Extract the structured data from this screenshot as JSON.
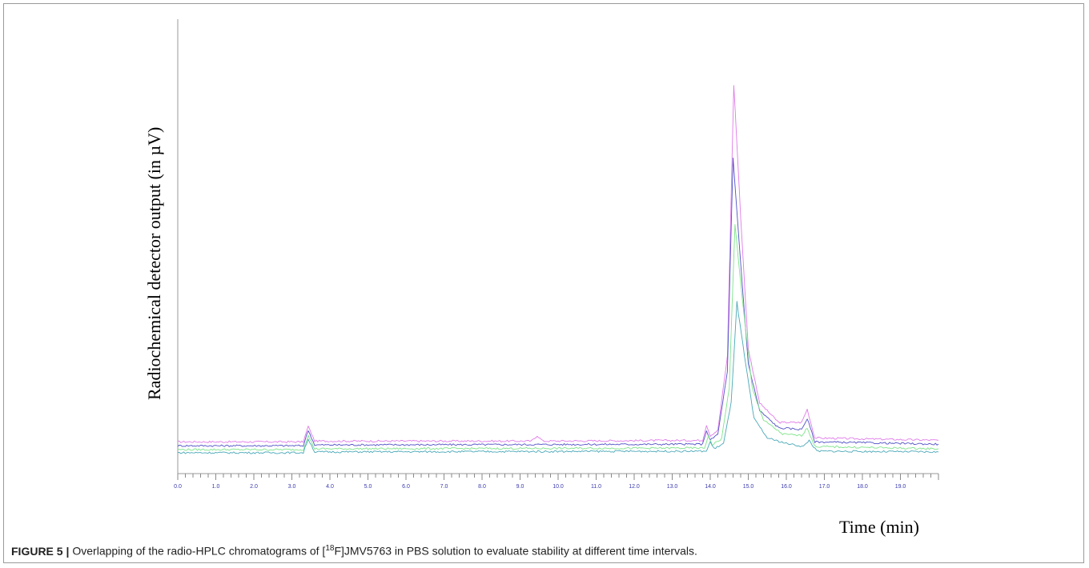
{
  "chart_data": {
    "type": "line",
    "xlabel": "Time (min)",
    "ylabel": "Radiochemical detector output (in µV)",
    "xlim": [
      0.0,
      20.0
    ],
    "x_ticks": [
      "0.0",
      "1.0",
      "2.0",
      "3.0",
      "4.0",
      "5.0",
      "6.0",
      "7.0",
      "8.0",
      "9.0",
      "10.0",
      "11.0",
      "12.0",
      "13.0",
      "14.0",
      "15.0",
      "16.0",
      "17.0",
      "18.0",
      "19.0"
    ],
    "grid": false,
    "series": [
      {
        "color": "#e07be8",
        "x": [
          0.0,
          3.3,
          3.43,
          3.6,
          9.3,
          9.45,
          9.6,
          13.8,
          13.9,
          14.0,
          14.2,
          14.45,
          14.62,
          14.8,
          15.0,
          15.3,
          15.8,
          16.4,
          16.55,
          16.75,
          20.0
        ],
        "y": [
          10,
          10,
          30,
          11,
          11,
          18,
          11,
          12,
          32,
          18,
          25,
          120,
          470,
          300,
          130,
          60,
          35,
          35,
          52,
          15,
          12
        ]
      },
      {
        "color": "#5252c8",
        "x": [
          0.0,
          3.3,
          3.43,
          3.6,
          13.8,
          13.9,
          14.0,
          14.2,
          14.45,
          14.6,
          14.8,
          15.0,
          15.3,
          15.8,
          16.4,
          16.55,
          16.75,
          20.0
        ],
        "y": [
          5,
          5,
          25,
          6,
          7,
          25,
          12,
          20,
          100,
          375,
          240,
          110,
          50,
          28,
          26,
          40,
          10,
          7
        ]
      },
      {
        "color": "#7ee48a",
        "x": [
          0.0,
          3.3,
          3.43,
          3.6,
          13.85,
          13.95,
          14.05,
          14.3,
          14.5,
          14.65,
          14.85,
          15.1,
          15.4,
          15.9,
          16.4,
          16.55,
          16.75,
          20.0
        ],
        "y": [
          0,
          0,
          18,
          1,
          2,
          18,
          6,
          14,
          80,
          290,
          190,
          80,
          38,
          20,
          18,
          28,
          4,
          1
        ]
      },
      {
        "color": "#4aa8b8",
        "x": [
          0.0,
          3.3,
          3.43,
          3.6,
          13.9,
          14.0,
          14.1,
          14.35,
          14.55,
          14.7,
          14.9,
          15.15,
          15.5,
          16.0,
          16.45,
          16.6,
          16.8,
          20.0
        ],
        "y": [
          -4,
          -4,
          14,
          -3,
          -2,
          10,
          1,
          8,
          60,
          190,
          120,
          40,
          15,
          8,
          4,
          12,
          -2,
          -3
        ]
      }
    ]
  },
  "caption": {
    "label": "FIGURE 5 |",
    "text_before": "Overlapping of the radio-HPLC chromatograms of [",
    "sup": "18",
    "text_after": "F]JMV5763 in PBS solution to evaluate stability at different time intervals."
  }
}
